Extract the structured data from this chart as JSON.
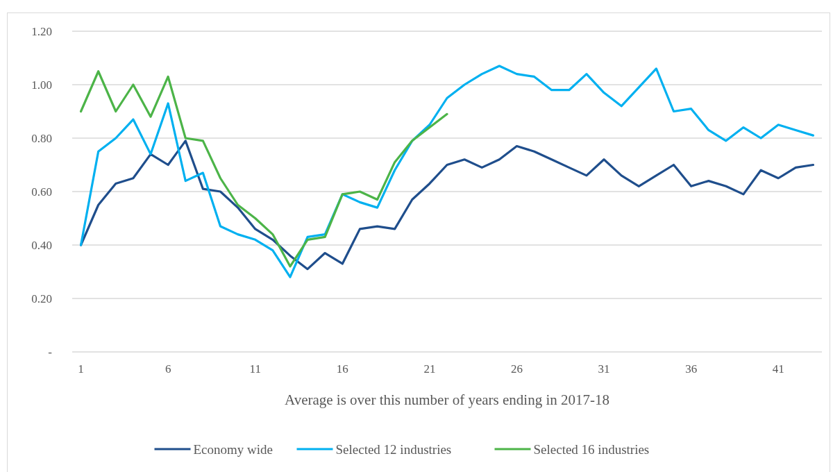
{
  "chart_data": {
    "type": "line",
    "xlabel": "Average is over this number of years ending in 2017-18",
    "x": [
      1,
      2,
      3,
      4,
      5,
      6,
      7,
      8,
      9,
      10,
      11,
      12,
      13,
      14,
      15,
      16,
      17,
      18,
      19,
      20,
      21,
      22,
      23,
      24,
      25,
      26,
      27,
      28,
      29,
      30,
      31,
      32,
      33,
      34,
      35,
      36,
      37,
      38,
      39,
      40,
      41,
      42,
      43
    ],
    "xlim": [
      0.5,
      43.5
    ],
    "xticks": [
      1,
      6,
      11,
      16,
      21,
      26,
      31,
      36,
      41
    ],
    "ylim": [
      0,
      1.2
    ],
    "yticks": [
      {
        "value": 0,
        "label": "-"
      },
      {
        "value": 0.2,
        "label": "0.20"
      },
      {
        "value": 0.4,
        "label": "0.40"
      },
      {
        "value": 0.6,
        "label": "0.60"
      },
      {
        "value": 0.8,
        "label": "0.80"
      },
      {
        "value": 1.0,
        "label": "1.00"
      },
      {
        "value": 1.2,
        "label": "1.20"
      }
    ],
    "grid": "y",
    "legend": "bottom",
    "marker": "none",
    "line_style": "solid",
    "series": [
      {
        "name": "Economy wide",
        "color": "#1f4e8c",
        "values": [
          0.4,
          0.55,
          0.63,
          0.65,
          0.74,
          0.7,
          0.79,
          0.61,
          0.6,
          0.54,
          0.46,
          0.42,
          0.36,
          0.31,
          0.37,
          0.33,
          0.46,
          0.47,
          0.46,
          0.57,
          0.63,
          0.7,
          0.72,
          0.69,
          0.72,
          0.77,
          0.75,
          0.72,
          0.69,
          0.66,
          0.72,
          0.66,
          0.62,
          0.66,
          0.7,
          0.62,
          0.64,
          0.62,
          0.59,
          0.68,
          0.65,
          0.69,
          0.7
        ]
      },
      {
        "name": "Selected 12 industries",
        "color": "#00b0f0",
        "values": [
          0.4,
          0.75,
          0.8,
          0.87,
          0.74,
          0.93,
          0.64,
          0.67,
          0.47,
          0.44,
          0.42,
          0.38,
          0.28,
          0.43,
          0.44,
          0.59,
          0.56,
          0.54,
          0.68,
          0.79,
          0.85,
          0.95,
          1.0,
          1.04,
          1.07,
          1.04,
          1.03,
          0.98,
          0.98,
          1.04,
          0.97,
          0.92,
          0.99,
          1.06,
          0.9,
          0.91,
          0.83,
          0.79,
          0.84,
          0.8,
          0.85,
          0.83,
          0.81
        ]
      },
      {
        "name": "Selected 16 industries",
        "color": "#4cb448",
        "values": [
          0.9,
          1.05,
          0.9,
          1.0,
          0.88,
          1.03,
          0.8,
          0.79,
          0.65,
          0.55,
          0.5,
          0.44,
          0.32,
          0.42,
          0.43,
          0.59,
          0.6,
          0.57,
          0.71,
          0.79,
          0.84,
          0.89,
          null,
          null,
          null,
          null,
          null,
          null,
          null,
          null,
          null,
          null,
          null,
          null,
          null,
          null,
          null,
          null,
          null,
          null,
          null,
          null,
          null
        ]
      }
    ]
  }
}
